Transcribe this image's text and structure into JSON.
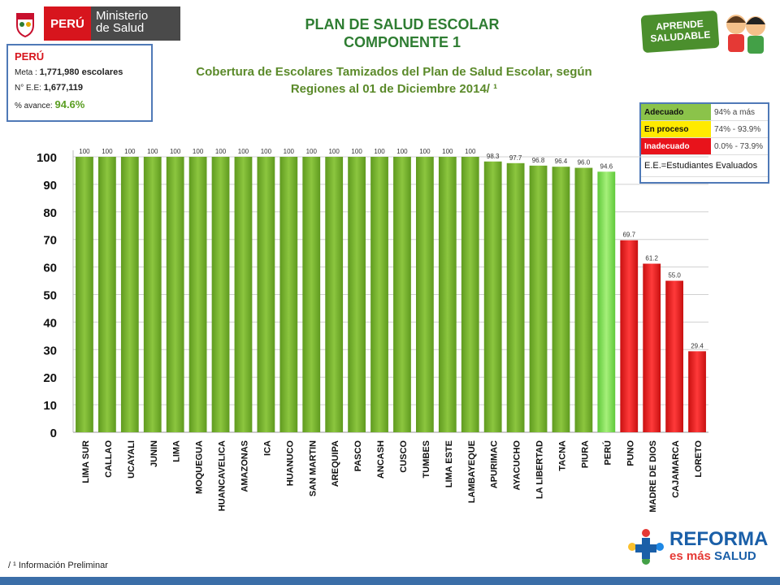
{
  "header": {
    "logo_peru": "PERÚ",
    "logo_ministerio": "Ministerio",
    "logo_salud": "de Salud",
    "title_line1": "PLAN DE SALUD ESCOLAR",
    "title_line2": "COMPONENTE 1",
    "subtitle": "Cobertura de Escolares Tamizados del Plan de Salud Escolar, según Regiones al 01 de Diciembre 2014/ ¹",
    "aprende_line1": "APRENDE",
    "aprende_line2": "SALUDABLE"
  },
  "info_box": {
    "title": "PERÚ",
    "meta_label": "Meta :",
    "meta_value": "1,771,980 escolares",
    "ee_label": "N° E.E:",
    "ee_value": "1,677,119",
    "avance_label": "% avance:",
    "avance_value": "94.6%"
  },
  "legend": {
    "items": [
      {
        "label": "Adecuado",
        "range": "94% a más",
        "color": "#8bc34a",
        "text_color": "#111111"
      },
      {
        "label": "En proceso",
        "range": "74% - 93.9%",
        "color": "#ffea00",
        "text_color": "#111111"
      },
      {
        "label": "Inadecuado",
        "range": "0.0% - 73.9%",
        "color": "#e8131b",
        "text_color": "#ffffff"
      }
    ],
    "note": "E.E.=Estudiantes Evaluados"
  },
  "footnote": {
    "mark": "/ ¹",
    "text": "Información Preliminar"
  },
  "reforma": {
    "line1": "REFORMA",
    "line2a": "es más",
    "line2b": "SALUD"
  },
  "colors": {
    "green": "#7cb530",
    "green_light": "#8fd14f",
    "red": "#ee1c1c",
    "title_green": "#2e7d32"
  },
  "chart_data": {
    "type": "bar",
    "categories": [
      "LIMA SUR",
      "CALLAO",
      "UCAYALI",
      "JUNIN",
      "LIMA",
      "MOQUEGUA",
      "HUANCAVELICA",
      "AMAZONAS",
      "ICA",
      "HUANUCO",
      "SAN MARTIN",
      "AREQUIPA",
      "PASCO",
      "ANCASH",
      "CUSCO",
      "TUMBES",
      "LIMA ESTE",
      "LAMBAYEQUE",
      "APURIMAC",
      "AYACUCHO",
      "LA LIBERTAD",
      "TACNA",
      "PIURA",
      "PERÚ",
      "PUNO",
      "MADRE DE DIOS",
      "CAJAMARCA",
      "LORETO"
    ],
    "values": [
      100,
      100,
      100,
      100,
      100,
      100,
      100,
      100,
      100,
      100,
      100,
      100,
      100,
      100,
      100,
      100,
      100,
      100,
      98.3,
      97.7,
      96.8,
      96.4,
      96.0,
      94.6,
      69.7,
      61.2,
      55.0,
      29.4
    ],
    "value_labels": [
      "100",
      "100",
      "100",
      "100",
      "100",
      "100",
      "100",
      "100",
      "100",
      "100",
      "100",
      "100",
      "100",
      "100",
      "100",
      "100",
      "100",
      "100",
      "98.3",
      "97.7",
      "96.8",
      "96.4",
      "96.0",
      "94.6",
      "69.7",
      "61.2",
      "55.0",
      "29.4"
    ],
    "bar_colors": [
      "green",
      "green",
      "green",
      "green",
      "green",
      "green",
      "green",
      "green",
      "green",
      "green",
      "green",
      "green",
      "green",
      "green",
      "green",
      "green",
      "green",
      "green",
      "green",
      "green",
      "green",
      "green",
      "green",
      "light",
      "red",
      "red",
      "red",
      "red"
    ],
    "ylim": [
      0,
      100
    ],
    "yticks": [
      0,
      10,
      20,
      30,
      40,
      50,
      60,
      70,
      80,
      90,
      100
    ],
    "grid": true,
    "xlabel": "",
    "ylabel": ""
  }
}
